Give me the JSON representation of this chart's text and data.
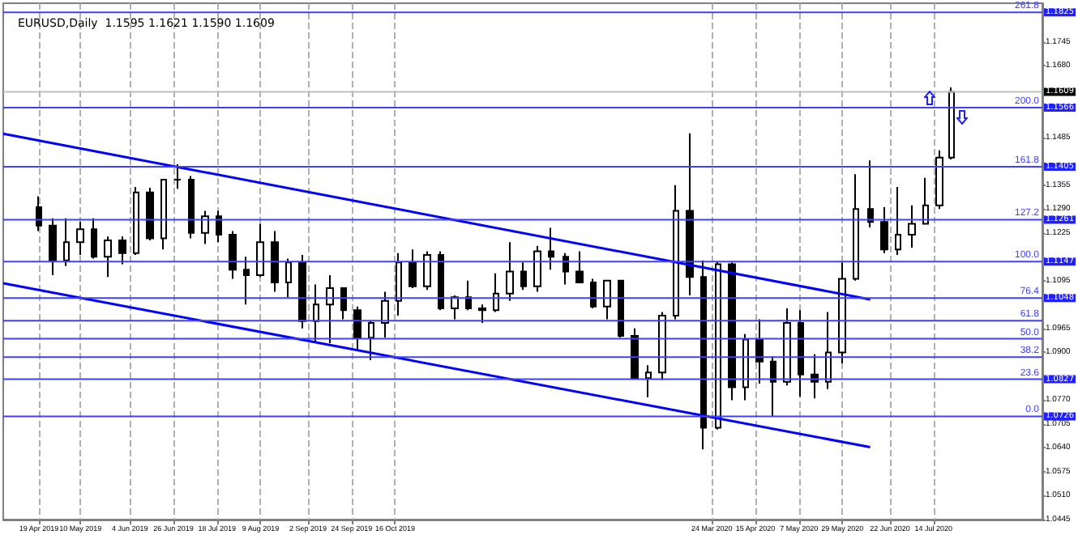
{
  "chart_data": {
    "type": "candlestick",
    "title": "EURUSD,Daily  1.1595 1.1621 1.1590 1.1609",
    "xlim": [
      "2019-04-01",
      "2020-09-07"
    ],
    "xticks": [
      {
        "value": "2019-04-19",
        "label": "19 Apr 2019"
      },
      {
        "value": "2019-05-10",
        "label": "10 May 2019"
      },
      {
        "value": "2019-06-04",
        "label": "4 Jun 2019"
      },
      {
        "value": "2019-06-26",
        "label": "26 Jun 2019"
      },
      {
        "value": "2019-07-18",
        "label": "18 Jul 2019"
      },
      {
        "value": "2019-08-09",
        "label": "9 Aug 2019"
      },
      {
        "value": "2019-09-02",
        "label": "2 Sep 2019"
      },
      {
        "value": "2019-09-24",
        "label": "24 Sep 2019"
      },
      {
        "value": "2019-10-16",
        "label": "16 Oct 2019"
      },
      {
        "value": "2020-03-24",
        "label": "24 Mar 2020"
      },
      {
        "value": "2020-04-15",
        "label": "15 Apr 2020"
      },
      {
        "value": "2020-05-07",
        "label": "7 May 2020"
      },
      {
        "value": "2020-05-29",
        "label": "29 May 2020"
      },
      {
        "value": "2020-06-22",
        "label": "22 Jun 2020"
      },
      {
        "value": "2020-07-14",
        "label": "14 Jul 2020"
      }
    ],
    "ylim": [
      1.0445,
      1.185
    ],
    "yticks": [
      1.0445,
      {
        "value": 1.051,
        "label": "1.0510"
      },
      1.0575,
      {
        "value": 1.064,
        "label": "1.0640"
      },
      1.0705,
      {
        "value": 1.077,
        "label": "1.0770"
      },
      {
        "value": 1.09,
        "label": "1.0900"
      },
      1.0965,
      1.1095,
      1.1225,
      {
        "value": 1.129,
        "label": "1.1290"
      },
      1.1355,
      1.1485,
      {
        "value": 1.168,
        "label": "1.1680"
      },
      1.1745
    ],
    "grid": "x",
    "series": [
      {
        "color": "#000000",
        "x": [
          "2019-04-19",
          "2019-04-26",
          "2019-05-03",
          "2019-05-10",
          "2019-05-17",
          "2019-05-24",
          "2019-05-31",
          "2019-06-07",
          "2019-06-14",
          "2019-06-21",
          "2019-06-28",
          "2019-07-05",
          "2019-07-12",
          "2019-07-19",
          "2019-07-26",
          "2019-08-02",
          "2019-08-09",
          "2019-08-16",
          "2019-08-23",
          "2019-08-30",
          "2019-09-06",
          "2019-09-13",
          "2019-09-20",
          "2019-09-27",
          "2019-10-04",
          "2019-10-11",
          "2019-10-18",
          "2019-10-25",
          "2019-11-01",
          "2019-11-08",
          "2019-11-15",
          "2019-11-22",
          "2019-11-29",
          "2019-12-06",
          "2019-12-13",
          "2019-12-20",
          "2019-12-27",
          "2020-01-03",
          "2020-01-10",
          "2020-01-17",
          "2020-01-24",
          "2020-01-31",
          "2020-02-07",
          "2020-02-14",
          "2020-02-21",
          "2020-02-28",
          "2020-03-06",
          "2020-03-13",
          "2020-03-20",
          "2020-03-27",
          "2020-04-03",
          "2020-04-10",
          "2020-04-17",
          "2020-04-24",
          "2020-05-01",
          "2020-05-08",
          "2020-05-15",
          "2020-05-22",
          "2020-05-29",
          "2020-06-05",
          "2020-06-12",
          "2020-06-19",
          "2020-06-26",
          "2020-07-03",
          "2020-07-10",
          "2020-07-17",
          "2020-07-23"
        ],
        "ohlc": [
          [
            1.1295,
            1.1325,
            1.123,
            1.1245
          ],
          [
            1.1245,
            1.1265,
            1.111,
            1.115
          ],
          [
            1.115,
            1.1265,
            1.1135,
            1.12
          ],
          [
            1.12,
            1.1255,
            1.1165,
            1.1235
          ],
          [
            1.1235,
            1.1265,
            1.1155,
            1.116
          ],
          [
            1.116,
            1.1215,
            1.1105,
            1.1205
          ],
          [
            1.1205,
            1.1215,
            1.114,
            1.117
          ],
          [
            1.117,
            1.135,
            1.1165,
            1.1335
          ],
          [
            1.1335,
            1.1348,
            1.1205,
            1.121
          ],
          [
            1.121,
            1.137,
            1.118,
            1.137
          ],
          [
            1.137,
            1.1412,
            1.1345,
            1.137
          ],
          [
            1.137,
            1.138,
            1.121,
            1.1225
          ],
          [
            1.1225,
            1.1285,
            1.1195,
            1.127
          ],
          [
            1.127,
            1.1285,
            1.12,
            1.122
          ],
          [
            1.122,
            1.123,
            1.11,
            1.1125
          ],
          [
            1.1125,
            1.116,
            1.103,
            1.111
          ],
          [
            1.111,
            1.125,
            1.1105,
            1.12
          ],
          [
            1.12,
            1.123,
            1.1065,
            1.109
          ],
          [
            1.109,
            1.1155,
            1.105,
            1.1145
          ],
          [
            1.1145,
            1.1165,
            1.0965,
            1.0985
          ],
          [
            1.0985,
            1.1085,
            1.0925,
            1.103
          ],
          [
            1.103,
            1.111,
            1.0925,
            1.1075
          ],
          [
            1.1075,
            1.1075,
            1.099,
            1.1015
          ],
          [
            1.1015,
            1.1025,
            1.0905,
            1.094
          ],
          [
            1.094,
            1.0985,
            1.0879,
            1.098
          ],
          [
            1.098,
            1.1065,
            1.094,
            1.104
          ],
          [
            1.104,
            1.117,
            1.1,
            1.1145
          ],
          [
            1.1145,
            1.118,
            1.1075,
            1.108
          ],
          [
            1.108,
            1.1175,
            1.107,
            1.1165
          ],
          [
            1.1165,
            1.1175,
            1.1015,
            1.102
          ],
          [
            1.102,
            1.1055,
            1.099,
            1.105
          ],
          [
            1.105,
            1.1095,
            1.1015,
            1.102
          ],
          [
            1.102,
            1.103,
            1.098,
            1.1015
          ],
          [
            1.1015,
            1.1115,
            1.101,
            1.106
          ],
          [
            1.106,
            1.12,
            1.104,
            1.112
          ],
          [
            1.112,
            1.1145,
            1.107,
            1.108
          ],
          [
            1.108,
            1.119,
            1.1065,
            1.1175
          ],
          [
            1.1175,
            1.1239,
            1.1125,
            1.116
          ],
          [
            1.116,
            1.117,
            1.1085,
            1.112
          ],
          [
            1.112,
            1.1175,
            1.109,
            1.109
          ],
          [
            1.109,
            1.11,
            1.102,
            1.1025
          ],
          [
            1.1025,
            1.1095,
            1.099,
            1.1095
          ],
          [
            1.1095,
            1.1095,
            1.094,
            1.0945
          ],
          [
            1.0945,
            1.0965,
            1.083,
            1.083
          ],
          [
            1.083,
            1.0865,
            1.0778,
            1.0845
          ],
          [
            1.0845,
            1.101,
            1.0825,
            1.1
          ],
          [
            1.1,
            1.1355,
            1.099,
            1.1285
          ],
          [
            1.1285,
            1.1496,
            1.1055,
            1.1105
          ],
          [
            1.1105,
            1.115,
            1.0636,
            1.0695
          ],
          [
            1.0695,
            1.1147,
            1.069,
            1.114
          ],
          [
            1.114,
            1.1145,
            1.077,
            1.0805
          ],
          [
            1.0805,
            1.095,
            1.077,
            1.0935
          ],
          [
            1.0935,
            1.099,
            1.0815,
            1.0875
          ],
          [
            1.0875,
            1.089,
            1.0727,
            1.082
          ],
          [
            1.082,
            1.102,
            1.081,
            1.098
          ],
          [
            1.098,
            1.1015,
            1.078,
            1.084
          ],
          [
            1.084,
            1.0895,
            1.0775,
            1.082
          ],
          [
            1.082,
            1.101,
            1.08,
            1.09
          ],
          [
            1.09,
            1.1145,
            1.087,
            1.11
          ],
          [
            1.11,
            1.1385,
            1.1095,
            1.129
          ],
          [
            1.129,
            1.1422,
            1.124,
            1.1255
          ],
          [
            1.1255,
            1.1295,
            1.117,
            1.118
          ],
          [
            1.118,
            1.135,
            1.1165,
            1.122
          ],
          [
            1.122,
            1.13,
            1.1185,
            1.125
          ],
          [
            1.125,
            1.1375,
            1.125,
            1.13
          ],
          [
            1.13,
            1.145,
            1.129,
            1.143
          ],
          [
            1.143,
            1.1621,
            1.1425,
            1.1609
          ]
        ]
      },
      {
        "type": "line",
        "color": "#0000ff",
        "x": [
          "2019-04-01",
          "2020-06-12"
        ],
        "values": [
          1.1495,
          1.1044
        ]
      },
      {
        "type": "line",
        "color": "#0000ff",
        "x": [
          "2019-04-01",
          "2020-06-12"
        ],
        "values": [
          1.1088,
          1.0642
        ]
      }
    ],
    "ref_lines": [
      {
        "axis": "y",
        "value": 1.1825,
        "label": "1.1825",
        "color": "#4040ff"
      },
      {
        "axis": "y",
        "value": 1.1609,
        "label": "1.1609",
        "color": "#c0c0c0"
      },
      {
        "axis": "y",
        "value": 1.1566,
        "label": "1.1566",
        "color": "#4040ff"
      },
      {
        "axis": "y",
        "value": 1.1405,
        "label": "1.1405",
        "color": "#4040ff"
      },
      {
        "axis": "y",
        "value": 1.1261,
        "label": "1.1261",
        "color": "#4040ff"
      },
      {
        "axis": "y",
        "value": 1.1147,
        "label": "1.1147",
        "color": "#4040ff"
      },
      {
        "axis": "y",
        "value": 1.1048,
        "label": "1.1048",
        "color": "#4040ff"
      },
      {
        "axis": "y",
        "value": 1.0986,
        "color": "#4040ff"
      },
      {
        "axis": "y",
        "value": 1.0937,
        "color": "#4040ff"
      },
      {
        "axis": "y",
        "value": 1.0887,
        "color": "#4040ff"
      },
      {
        "axis": "y",
        "value": 1.0827,
        "label": "1.0827",
        "color": "#4040ff"
      },
      {
        "axis": "y",
        "value": 1.0726,
        "label": "1.0726",
        "color": "#4040ff"
      }
    ],
    "annotations": [
      {
        "text": "261.8",
        "y": 1.1825
      },
      {
        "text": "200.0",
        "y": 1.1566
      },
      {
        "text": "161.8",
        "y": 1.1405
      },
      {
        "text": "127.2",
        "y": 1.1261
      },
      {
        "text": "100.0",
        "y": 1.1147
      },
      {
        "text": "76.4",
        "y": 1.1048
      },
      {
        "text": "61.8",
        "y": 1.0986
      },
      {
        "text": "50.0",
        "y": 1.0937
      },
      {
        "text": "38.2",
        "y": 1.0887
      },
      {
        "text": "23.6",
        "y": 1.0827
      },
      {
        "text": "0.0",
        "y": 1.0726
      }
    ]
  }
}
